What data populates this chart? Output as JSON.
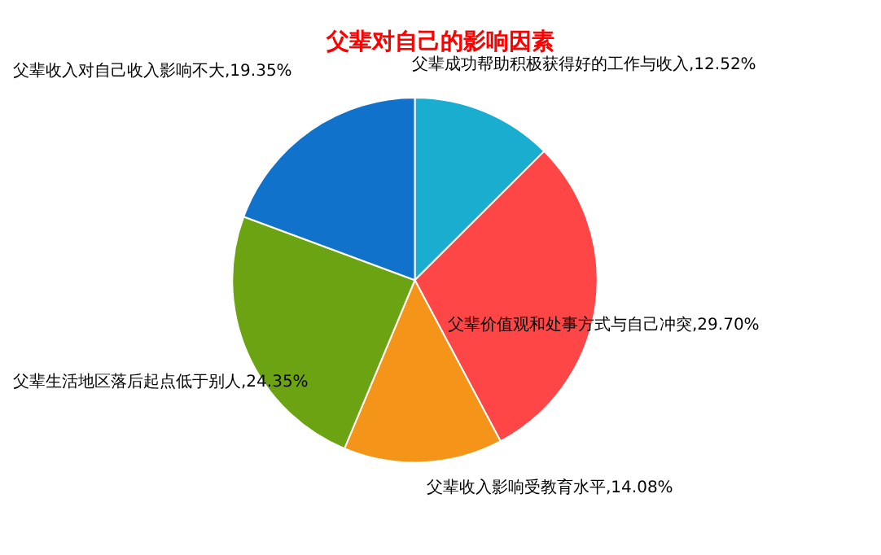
{
  "chart_data": {
    "type": "pie",
    "title": "父辈对自己的影响因素",
    "categories": [
      "父辈成功帮助积极获得好的工作与收入",
      "父辈价值观和处事方式与自己冲突",
      "父辈收入影响受教育水平",
      "父辈生活地区落后起点低于别人",
      "父辈收入对自己收入影响不大"
    ],
    "values": [
      12.52,
      29.7,
      14.08,
      24.35,
      19.35
    ],
    "value_labels": [
      "12.52%",
      "29.70%",
      "14.08%",
      "24.35%",
      "19.35%"
    ],
    "colors": [
      "#19aecf",
      "#ff4646",
      "#f4951a",
      "#6ca312",
      "#1172cb"
    ],
    "legend": false
  }
}
